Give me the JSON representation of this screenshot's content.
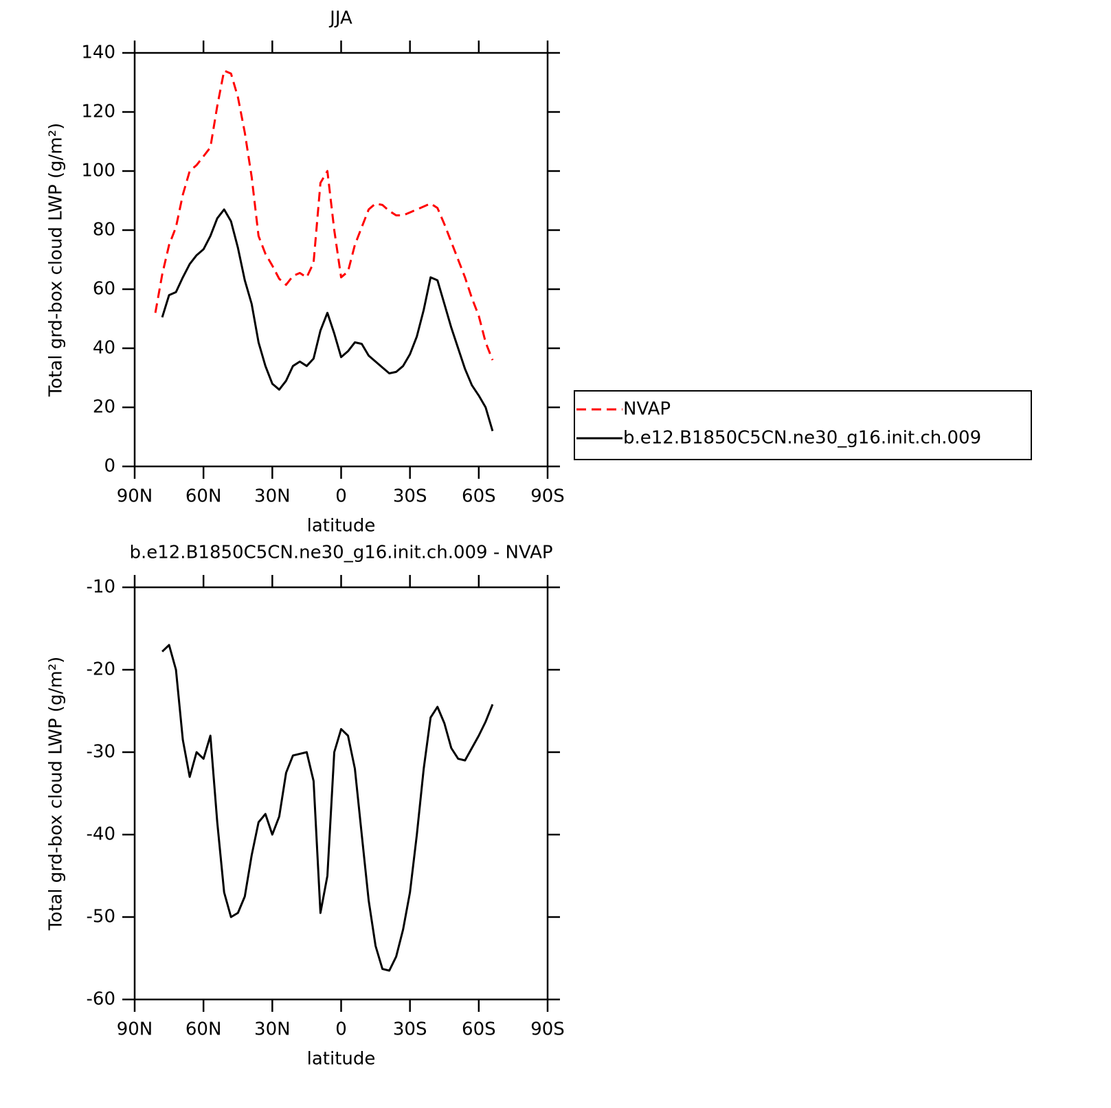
{
  "chart_data": [
    {
      "type": "line",
      "title": "JJA",
      "xlabel": "latitude",
      "ylabel": "Total grd-box cloud LWP (g/m²)",
      "x": [
        81,
        78,
        75,
        72,
        69,
        66,
        63,
        60,
        57,
        54,
        51,
        48,
        45,
        42,
        39,
        36,
        33,
        30,
        27,
        24,
        21,
        18,
        15,
        12,
        9,
        6,
        3,
        0,
        -3,
        -6,
        -9,
        -12,
        -15,
        -18,
        -21,
        -24,
        -27,
        -30,
        -33,
        -36,
        -39,
        -42,
        -45,
        -48,
        -51,
        -54,
        -57,
        -60,
        -63,
        -66
      ],
      "series": [
        {
          "name": "NVAP",
          "color": "#ff0000",
          "linestyle": "dashed",
          "values": [
            52,
            65,
            75,
            81,
            92,
            100,
            102,
            105,
            108,
            122,
            134,
            133,
            125,
            113,
            98,
            78,
            72,
            68,
            63.5,
            61.5,
            64.5,
            65.5,
            64,
            69,
            96,
            100,
            80,
            64,
            66,
            75,
            81,
            87,
            89,
            88.5,
            86.5,
            85,
            85,
            86,
            87,
            88,
            89,
            87.5,
            82,
            76,
            70,
            64,
            57,
            51,
            42,
            36
          ]
        },
        {
          "name": "b.e12.B1850C5CN.ne30_g16.init.ch.009",
          "color": "#000000",
          "linestyle": "solid",
          "values": [
            null,
            50.5,
            58,
            59,
            64,
            68.5,
            71.5,
            73.5,
            78,
            84,
            87,
            83,
            74,
            63,
            55,
            42,
            34,
            28,
            26,
            29,
            34,
            35.5,
            34,
            36.5,
            46,
            52,
            45,
            37,
            39,
            42,
            41.5,
            37.5,
            35.5,
            33.5,
            31.5,
            32,
            34,
            38,
            44,
            53,
            64,
            63,
            55,
            47,
            40,
            33,
            27.5,
            24,
            20,
            12
          ]
        }
      ],
      "xlim": [
        90,
        -90
      ],
      "xticks": [
        {
          "value": 90,
          "label": "90N"
        },
        {
          "value": 60,
          "label": "60N"
        },
        {
          "value": 30,
          "label": "30N"
        },
        0,
        {
          "value": -30,
          "label": "30S"
        },
        {
          "value": -60,
          "label": "60S"
        },
        {
          "value": -90,
          "label": "90S"
        }
      ],
      "ylim": [
        0,
        140
      ],
      "yticks": [
        0,
        20,
        40,
        60,
        80,
        100,
        120,
        140
      ],
      "grid": false,
      "legend": "right"
    },
    {
      "type": "line",
      "title": "b.e12.B1850C5CN.ne30_g16.init.ch.009 - NVAP",
      "xlabel": "latitude",
      "ylabel": "Total grd-box cloud LWP (g/m²)",
      "x": [
        81,
        78,
        75,
        72,
        69,
        66,
        63,
        60,
        57,
        54,
        51,
        48,
        45,
        42,
        39,
        36,
        33,
        30,
        27,
        24,
        21,
        18,
        15,
        12,
        9,
        6,
        3,
        0,
        -3,
        -6,
        -9,
        -12,
        -15,
        -18,
        -21,
        -24,
        -27,
        -30,
        -33,
        -36,
        -39,
        -42,
        -45,
        -48,
        -51,
        -54,
        -57,
        -60,
        -63,
        -66
      ],
      "values": [
        null,
        -17.8,
        -17,
        -20,
        -28.5,
        -33,
        -30,
        -30.8,
        -28,
        -38.5,
        -47,
        -50,
        -49.5,
        -47.5,
        -42.5,
        -38.5,
        -37.5,
        -40,
        -37.8,
        -32.5,
        -30.4,
        -30.2,
        -30,
        -33.5,
        -49.5,
        -45,
        -30,
        -27.2,
        -28,
        -32,
        -40,
        -48,
        -53.5,
        -56.3,
        -56.5,
        -54.8,
        -51.5,
        -47,
        -40,
        -32,
        -25.8,
        -24.5,
        -26.5,
        -29.5,
        -30.8,
        -31,
        -29.5,
        -28,
        -26.3,
        -24.2
      ],
      "color": "#000000",
      "xlim": [
        90,
        -90
      ],
      "xticks": [
        {
          "value": 90,
          "label": "90N"
        },
        {
          "value": 60,
          "label": "60N"
        },
        {
          "value": 30,
          "label": "30N"
        },
        0,
        {
          "value": -30,
          "label": "30S"
        },
        {
          "value": -60,
          "label": "60S"
        },
        {
          "value": -90,
          "label": "90S"
        }
      ],
      "ylim": [
        -60,
        -10
      ],
      "yticks": [
        -60,
        -50,
        -40,
        -30,
        -20,
        -10
      ],
      "grid": false
    }
  ]
}
